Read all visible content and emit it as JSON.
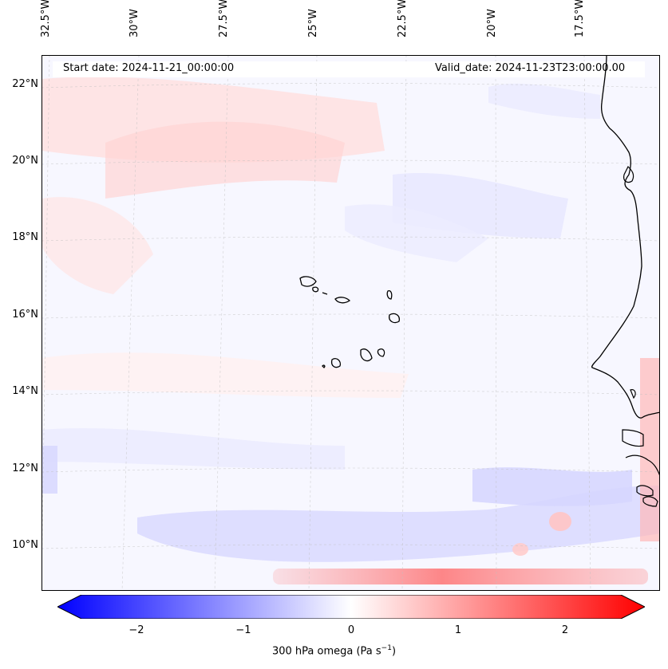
{
  "map": {
    "start_label": "Start date: 2024-11-21_00:00:00",
    "valid_label": "Valid_date: 2024-11-23T23:00:00.00",
    "lon_labels": [
      "32.5°W",
      "30°W",
      "27.5°W",
      "25°W",
      "22.5°W",
      "20°W",
      "17.5°W"
    ],
    "lat_labels": [
      "22°N",
      "20°N",
      "18°N",
      "16°N",
      "14°N",
      "12°N",
      "10°N"
    ],
    "background_color": "#f7f7ff",
    "coast_color": "#000000"
  },
  "colorbar": {
    "label": "300 hPa omega (Pa s",
    "label_sup": "−1",
    "label_close": ")",
    "ticks": [
      "−2",
      "−1",
      "0",
      "1",
      "2"
    ],
    "min_color": "#0000ff",
    "mid_color": "#ffffff",
    "max_color": "#ff0000"
  }
}
